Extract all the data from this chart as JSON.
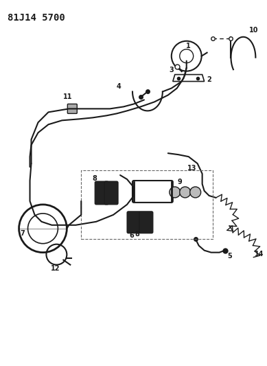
{
  "title": "81J14 5700",
  "bg_color": "#ffffff",
  "line_color": "#1a1a1a",
  "title_fontsize": 10,
  "label_fontsize": 7,
  "border_color": "#cccccc"
}
